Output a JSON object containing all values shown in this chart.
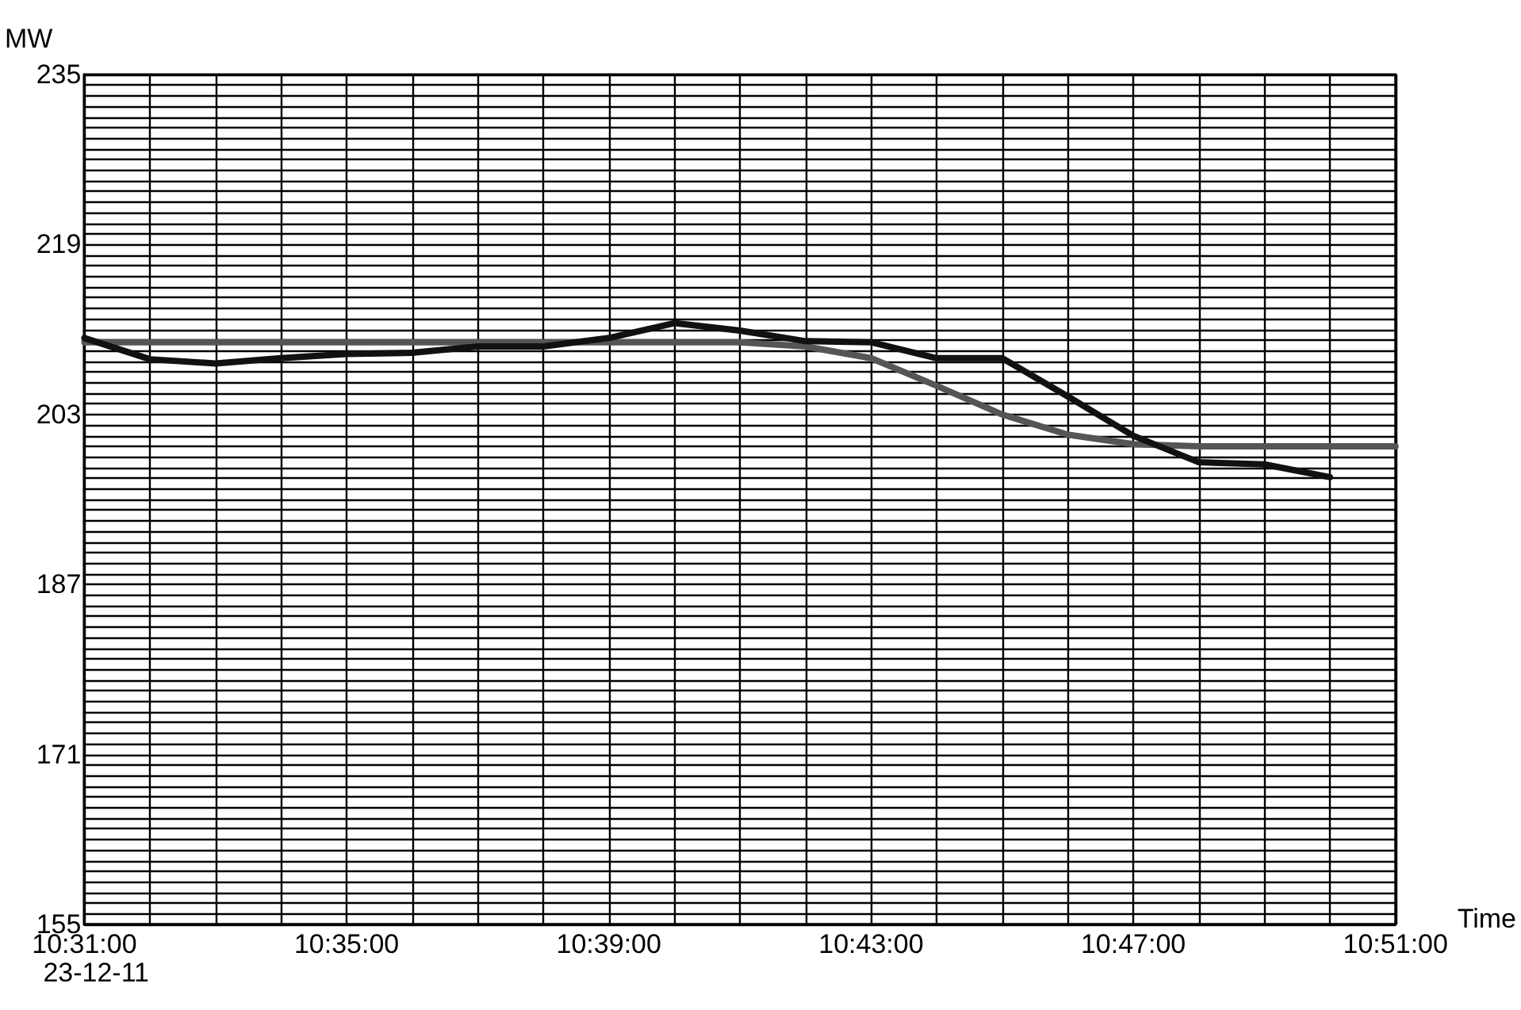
{
  "chart_data": {
    "type": "line",
    "ylabel": "MW",
    "xlabel": "Time",
    "annotations": [
      "23-12-11"
    ],
    "x": [
      10.516667,
      10.533333,
      10.55,
      10.566667,
      10.583333,
      10.6,
      10.616667,
      10.633333,
      10.65,
      10.666667,
      10.683333,
      10.7,
      10.716667,
      10.733333,
      10.75,
      10.766667,
      10.783333,
      10.8,
      10.816667,
      10.833333,
      10.85
    ],
    "series": [
      {
        "color": "#555555",
        "values": [
          209.8,
          209.8,
          209.8,
          209.8,
          209.8,
          209.8,
          209.8,
          209.8,
          209.8,
          209.8,
          209.8,
          209.4,
          208.3,
          205.7,
          203.0,
          201.1,
          200.2,
          200.0,
          200.0,
          200.0,
          200.0
        ]
      },
      {
        "color": "#111111",
        "values": [
          210.2,
          208.2,
          207.8,
          208.3,
          208.7,
          208.8,
          209.4,
          209.4,
          210.2,
          211.6,
          210.9,
          209.9,
          209.8,
          208.3,
          208.3,
          204.7,
          201.0,
          198.5,
          198.3,
          197.1,
          null
        ]
      }
    ],
    "xlim": [
      10.516667,
      10.85
    ],
    "xticks": [
      {
        "value": 10.516667,
        "label": "10:31:00"
      },
      {
        "value": 10.533333,
        "label": null
      },
      {
        "value": 10.55,
        "label": null
      },
      {
        "value": 10.566667,
        "label": null
      },
      {
        "value": 10.583333,
        "label": "10:35:00"
      },
      {
        "value": 10.6,
        "label": null
      },
      {
        "value": 10.616667,
        "label": null
      },
      {
        "value": 10.633333,
        "label": null
      },
      {
        "value": 10.65,
        "label": "10:39:00"
      },
      {
        "value": 10.666667,
        "label": null
      },
      {
        "value": 10.683333,
        "label": null
      },
      {
        "value": 10.7,
        "label": null
      },
      {
        "value": 10.716667,
        "label": "10:43:00"
      },
      {
        "value": 10.733333,
        "label": null
      },
      {
        "value": 10.75,
        "label": null
      },
      {
        "value": 10.766667,
        "label": null
      },
      {
        "value": 10.783333,
        "label": "10:47:00"
      },
      {
        "value": 10.8,
        "label": null
      },
      {
        "value": 10.816667,
        "label": null
      },
      {
        "value": 10.833333,
        "label": null
      },
      {
        "value": 10.85,
        "label": "10:51:00"
      }
    ],
    "ylim": [
      155,
      235
    ],
    "yticks": [
      155,
      {
        "value": 156,
        "label": null
      },
      {
        "value": 157,
        "label": null
      },
      {
        "value": 158,
        "label": null
      },
      {
        "value": 159,
        "label": null
      },
      {
        "value": 160,
        "label": null
      },
      {
        "value": 161,
        "label": null
      },
      {
        "value": 162,
        "label": null
      },
      {
        "value": 163,
        "label": null
      },
      {
        "value": 164,
        "label": null
      },
      {
        "value": 165,
        "label": null
      },
      {
        "value": 166,
        "label": null
      },
      {
        "value": 167,
        "label": null
      },
      {
        "value": 168,
        "label": null
      },
      {
        "value": 169,
        "label": null
      },
      {
        "value": 170,
        "label": null
      },
      171,
      {
        "value": 172,
        "label": null
      },
      {
        "value": 173,
        "label": null
      },
      {
        "value": 174,
        "label": null
      },
      {
        "value": 175,
        "label": null
      },
      {
        "value": 176,
        "label": null
      },
      {
        "value": 177,
        "label": null
      },
      {
        "value": 178,
        "label": null
      },
      {
        "value": 179,
        "label": null
      },
      {
        "value": 180,
        "label": null
      },
      {
        "value": 181,
        "label": null
      },
      {
        "value": 182,
        "label": null
      },
      {
        "value": 183,
        "label": null
      },
      {
        "value": 184,
        "label": null
      },
      {
        "value": 185,
        "label": null
      },
      {
        "value": 186,
        "label": null
      },
      187,
      {
        "value": 188,
        "label": null
      },
      {
        "value": 189,
        "label": null
      },
      {
        "value": 190,
        "label": null
      },
      {
        "value": 191,
        "label": null
      },
      {
        "value": 192,
        "label": null
      },
      {
        "value": 193,
        "label": null
      },
      {
        "value": 194,
        "label": null
      },
      {
        "value": 195,
        "label": null
      },
      {
        "value": 196,
        "label": null
      },
      {
        "value": 197,
        "label": null
      },
      {
        "value": 198,
        "label": null
      },
      {
        "value": 199,
        "label": null
      },
      {
        "value": 200,
        "label": null
      },
      {
        "value": 201,
        "label": null
      },
      {
        "value": 202,
        "label": null
      },
      203,
      {
        "value": 204,
        "label": null
      },
      {
        "value": 205,
        "label": null
      },
      {
        "value": 206,
        "label": null
      },
      {
        "value": 207,
        "label": null
      },
      {
        "value": 208,
        "label": null
      },
      {
        "value": 209,
        "label": null
      },
      {
        "value": 210,
        "label": null
      },
      {
        "value": 211,
        "label": null
      },
      {
        "value": 212,
        "label": null
      },
      {
        "value": 213,
        "label": null
      },
      {
        "value": 214,
        "label": null
      },
      {
        "value": 215,
        "label": null
      },
      {
        "value": 216,
        "label": null
      },
      {
        "value": 217,
        "label": null
      },
      {
        "value": 218,
        "label": null
      },
      219,
      {
        "value": 220,
        "label": null
      },
      {
        "value": 221,
        "label": null
      },
      {
        "value": 222,
        "label": null
      },
      {
        "value": 223,
        "label": null
      },
      {
        "value": 224,
        "label": null
      },
      {
        "value": 225,
        "label": null
      },
      {
        "value": 226,
        "label": null
      },
      {
        "value": 227,
        "label": null
      },
      {
        "value": 228,
        "label": null
      },
      {
        "value": 229,
        "label": null
      },
      {
        "value": 230,
        "label": null
      },
      {
        "value": 231,
        "label": null
      },
      {
        "value": 232,
        "label": null
      },
      {
        "value": 233,
        "label": null
      },
      {
        "value": 234,
        "label": null
      },
      235
    ],
    "grid": true,
    "marker": "none",
    "line_style": "solid"
  }
}
